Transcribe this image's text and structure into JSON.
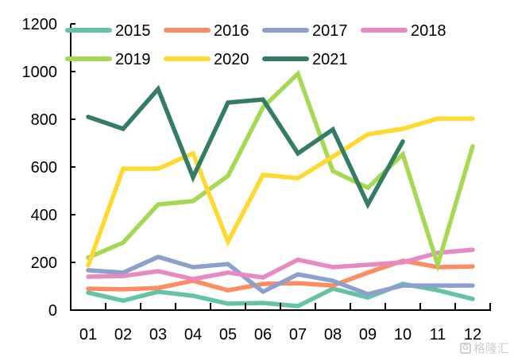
{
  "chart_data": {
    "type": "line",
    "title": "",
    "xlabel": "",
    "ylabel": "",
    "categories": [
      "01",
      "02",
      "03",
      "04",
      "05",
      "06",
      "07",
      "08",
      "09",
      "10",
      "11",
      "12"
    ],
    "ylim": [
      0,
      1200
    ],
    "yticks": [
      "0",
      "200",
      "400",
      "600",
      "800",
      "1000",
      "1200"
    ],
    "ytick_values": [
      0,
      200,
      400,
      600,
      800,
      1000,
      1200
    ],
    "grid": false,
    "legend_position": "top",
    "series": [
      {
        "name": "2015",
        "color": "#66C2A5",
        "values": [
          73,
          40,
          77,
          60,
          27,
          30,
          17,
          90,
          53,
          110,
          83,
          47
        ]
      },
      {
        "name": "2016",
        "color": "#FC8D62",
        "values": [
          90,
          87,
          93,
          123,
          83,
          110,
          113,
          103,
          157,
          207,
          180,
          183
        ]
      },
      {
        "name": "2017",
        "color": "#8DA0CB",
        "values": [
          167,
          157,
          223,
          180,
          193,
          77,
          150,
          123,
          67,
          103,
          103,
          103
        ]
      },
      {
        "name": "2018",
        "color": "#E78AC3",
        "values": [
          140,
          143,
          163,
          130,
          157,
          137,
          211,
          180,
          190,
          200,
          240,
          253
        ]
      },
      {
        "name": "2019",
        "color": "#A6D854",
        "values": [
          220,
          283,
          443,
          457,
          563,
          850,
          991,
          583,
          513,
          653,
          190,
          687
        ]
      },
      {
        "name": "2020",
        "color": "#FFD92F",
        "values": [
          187,
          593,
          593,
          657,
          287,
          567,
          553,
          643,
          737,
          760,
          803,
          803
        ]
      },
      {
        "name": "2021",
        "color": "#347D63",
        "values": [
          810,
          760,
          927,
          557,
          870,
          883,
          657,
          757,
          443,
          707,
          null,
          null
        ]
      }
    ]
  },
  "watermark": {
    "logo_glyph": "G",
    "text": "格隆汇"
  }
}
